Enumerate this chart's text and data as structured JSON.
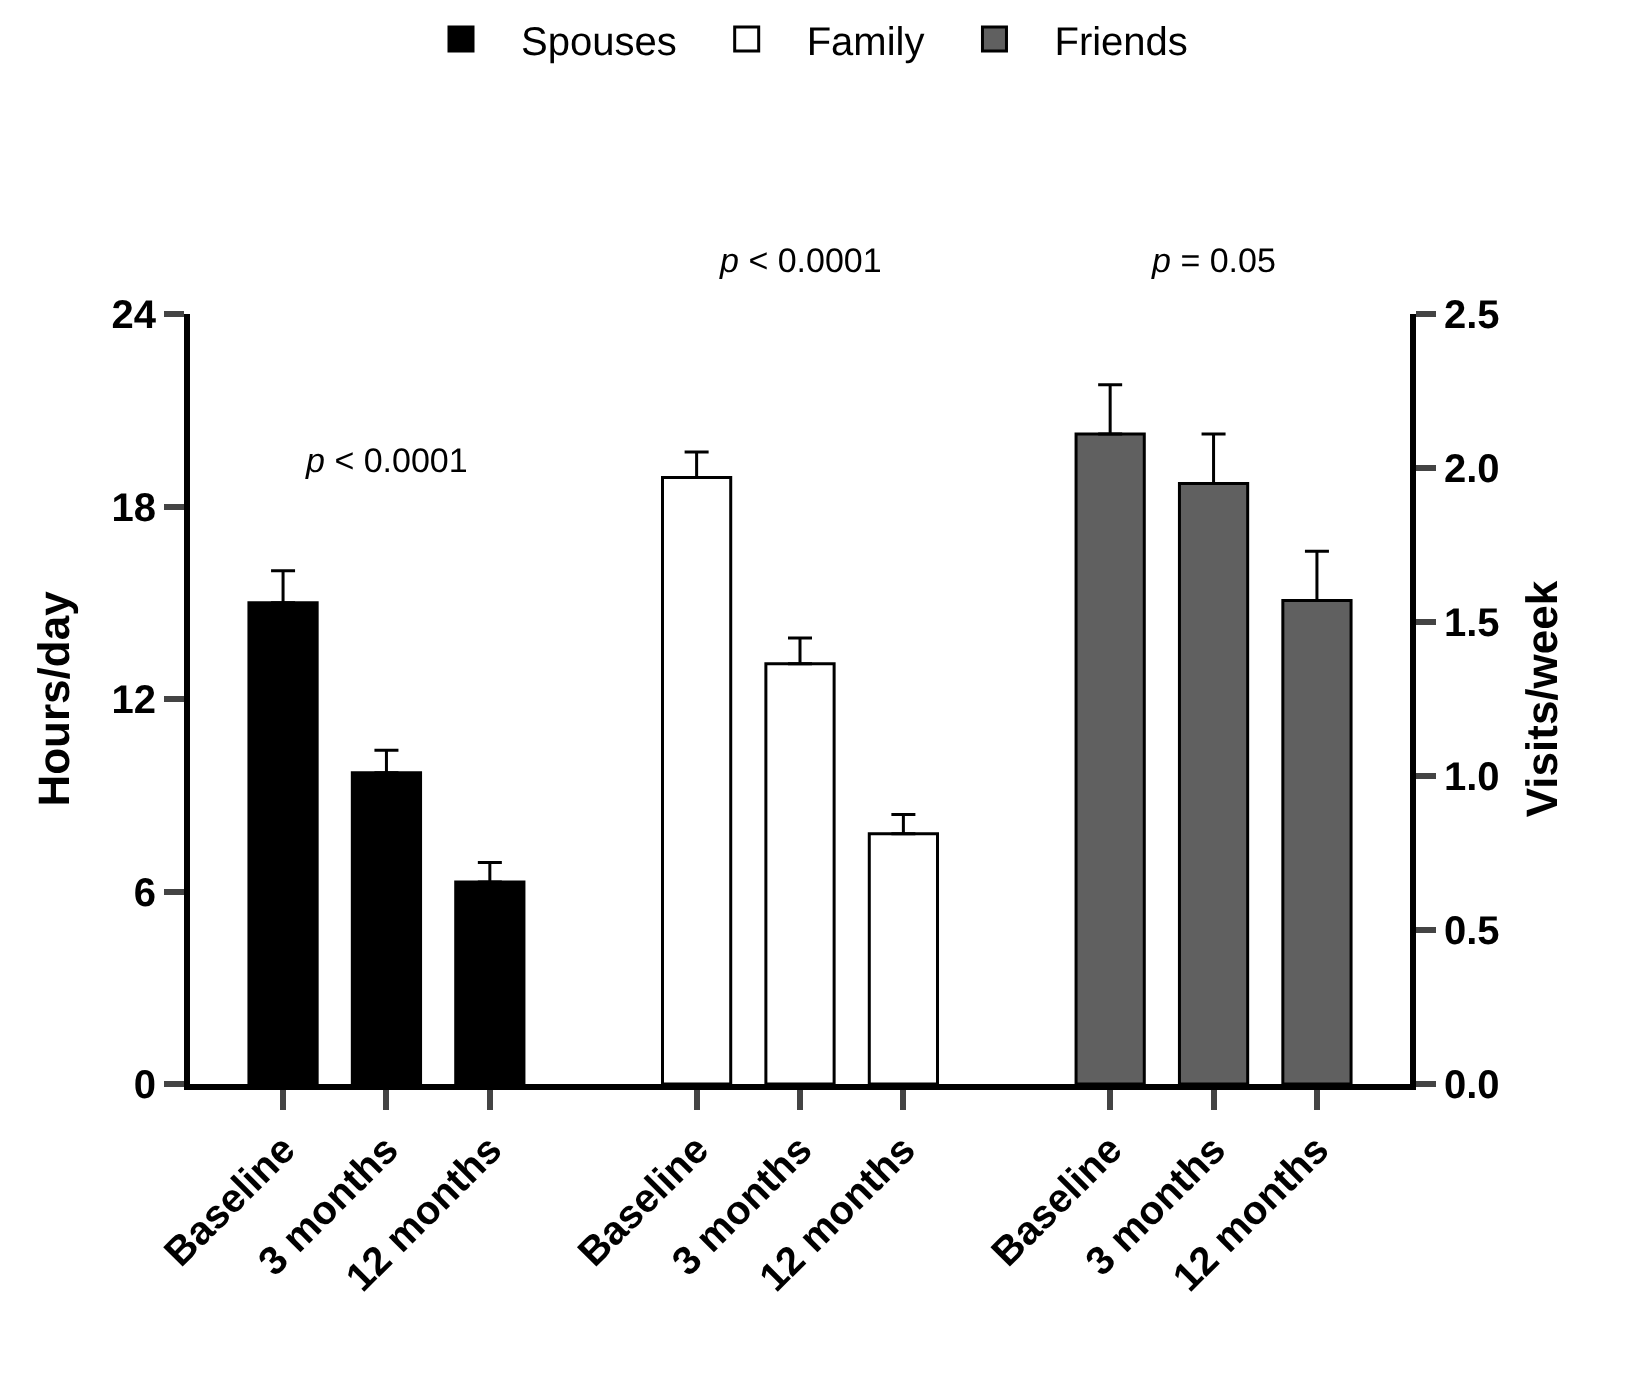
{
  "chart_data": {
    "type": "bar",
    "categories": [
      "Baseline",
      "3 months",
      "12 months",
      null,
      "Baseline",
      "3 months",
      "12 months",
      null,
      "Baseline",
      "3 months",
      "12 months"
    ],
    "series": [
      {
        "name": "Spouses",
        "color": "#000000",
        "values": [
          15.0,
          9.7,
          6.3,
          null,
          null,
          null,
          null,
          null,
          null,
          null,
          null
        ],
        "errors": [
          [
            15.0,
            16.0
          ],
          [
            9.7,
            10.4
          ],
          [
            6.3,
            6.9
          ],
          null,
          null,
          null,
          null,
          null,
          null,
          null,
          null
        ]
      },
      {
        "name": "Family",
        "color": "#ffffff",
        "values": [
          null,
          null,
          null,
          null,
          18.9,
          13.1,
          7.8,
          null,
          null,
          null,
          null
        ],
        "errors": [
          null,
          null,
          null,
          null,
          [
            18.9,
            19.7
          ],
          [
            13.1,
            13.9
          ],
          [
            7.8,
            8.4
          ],
          null,
          null,
          null,
          null
        ]
      },
      {
        "name": "Friends",
        "color": "#606060",
        "axis": "y2",
        "values": [
          null,
          null,
          null,
          null,
          null,
          null,
          null,
          null,
          2.11,
          1.95,
          1.57
        ],
        "errors": [
          null,
          null,
          null,
          null,
          null,
          null,
          null,
          null,
          [
            2.11,
            2.27
          ],
          [
            1.95,
            2.11
          ],
          [
            1.57,
            1.73
          ]
        ]
      }
    ],
    "ylabel": "Hours/day",
    "y2label": "Visits/week",
    "ylim": [
      0,
      24
    ],
    "yticks": [
      0,
      6,
      12,
      18,
      24
    ],
    "y2lim": [
      0,
      2.5
    ],
    "y2ticks": [
      {
        "value": 0,
        "label": "0.0"
      },
      0.5,
      {
        "value": 1,
        "label": "1.0"
      },
      1.5,
      {
        "value": 2,
        "label": "2.0"
      },
      2.5
    ],
    "annotations": [
      "p < 0.0001",
      "p < 0.0001",
      "p = 0.05"
    ],
    "legend": "top"
  }
}
